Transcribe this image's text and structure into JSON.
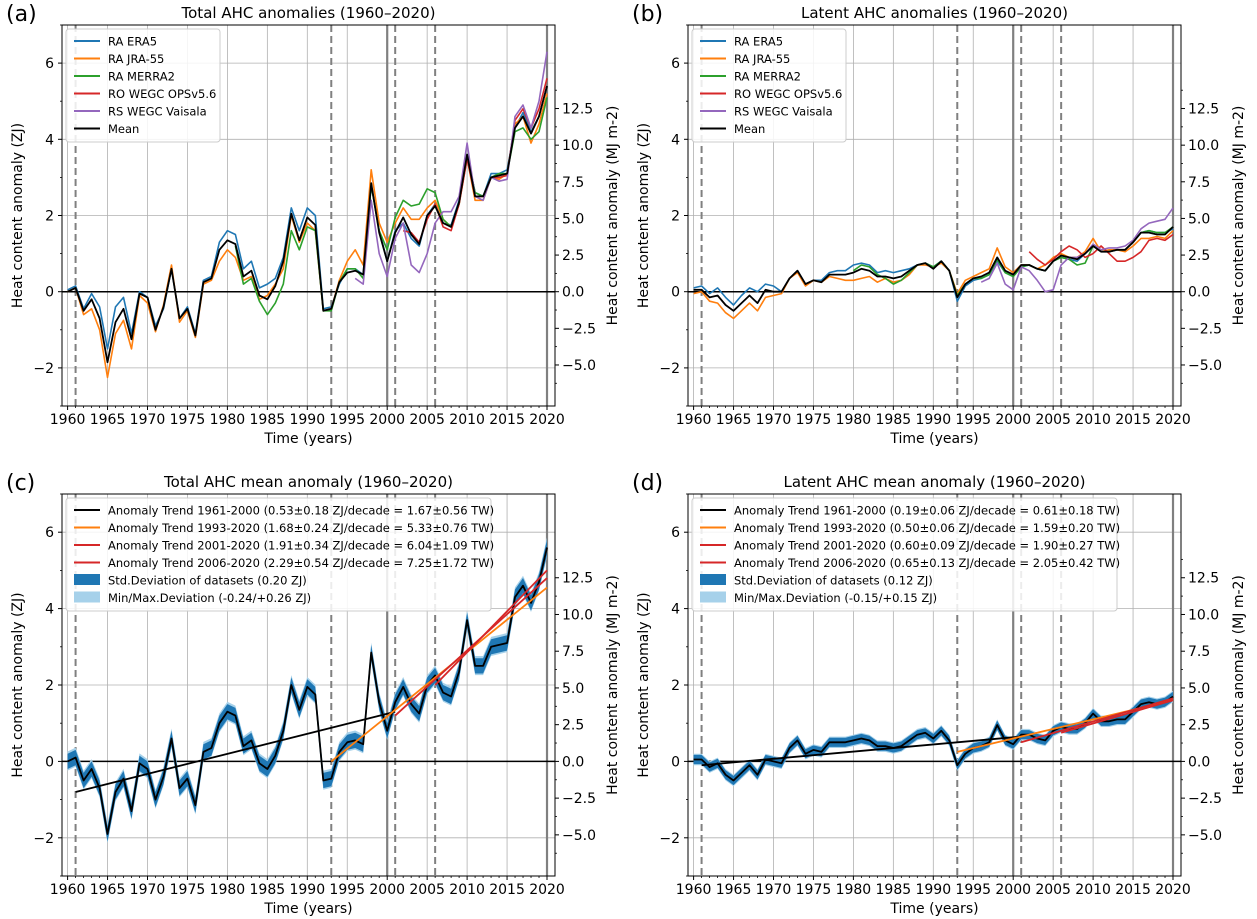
{
  "chart_data": [
    {
      "type": "line",
      "panel_label": "(a)",
      "title": "Total AHC anomalies (1960–2020)",
      "xlabel": "Time (years)",
      "ylabel": "Heat content anomaly (ZJ)",
      "ylabel_right": "Heat content anomaly (MJ m-2)",
      "xlim": [
        1959.3,
        2021
      ],
      "ylim": [
        -3,
        7
      ],
      "xticks": [
        "1960",
        "1965",
        "1970",
        "1975",
        "1980",
        "1985",
        "1990",
        "1995",
        "2000",
        "2005",
        "2010",
        "2015",
        "2020"
      ],
      "yticks": [
        "−2",
        "0",
        "2",
        "4",
        "6"
      ],
      "yticks_right": [
        "−5.0",
        "−2.5",
        "0.0",
        "2.5",
        "5.0",
        "7.5",
        "10.0",
        "12.5"
      ],
      "legend": [
        "RA ERA5",
        "RA JRA-55",
        "RA MERRA2",
        "RO WEGC OPSv5.6",
        "RS WEGC Vaisala",
        "Mean"
      ],
      "series": [
        {
          "name": "RA ERA5",
          "color": "#1f77b4",
          "x_start": 1960,
          "values": [
            0.05,
            0.15,
            -0.45,
            -0.05,
            -0.4,
            -1.5,
            -0.4,
            -0.15,
            -1.1,
            0.0,
            -0.15,
            -0.9,
            -0.45,
            0.6,
            -0.7,
            -0.4,
            -1.1,
            0.3,
            0.4,
            1.3,
            1.6,
            1.5,
            0.6,
            0.8,
            0.1,
            0.2,
            0.35,
            0.9,
            2.2,
            1.6,
            2.2,
            2.0,
            -0.45,
            -0.4,
            0.2,
            0.6,
            0.6,
            0.45,
            2.8,
            1.6,
            0.8,
            1.6,
            1.8,
            1.4,
            1.2,
            2.0,
            2.3,
            1.8,
            1.75,
            2.4,
            3.6,
            2.6,
            2.5,
            3.1,
            3.1,
            3.2,
            4.3,
            4.7,
            4.2,
            4.6,
            5.4
          ]
        },
        {
          "name": "RA JRA-55",
          "color": "#ff7f0e",
          "x_start": 1960,
          "values": [
            0.0,
            0.1,
            -0.6,
            -0.45,
            -1.0,
            -2.25,
            -1.1,
            -0.75,
            -1.5,
            -0.1,
            -0.3,
            -1.05,
            -0.35,
            0.7,
            -0.8,
            -0.5,
            -1.2,
            0.2,
            0.3,
            0.8,
            1.1,
            0.9,
            0.3,
            0.4,
            -0.2,
            -0.1,
            0.2,
            0.6,
            2.0,
            1.3,
            1.8,
            1.6,
            -0.5,
            -0.45,
            0.3,
            0.8,
            1.1,
            0.7,
            3.2,
            1.8,
            1.3,
            1.8,
            2.2,
            1.9,
            1.9,
            2.2,
            2.4,
            1.9,
            1.7,
            2.3,
            3.5,
            2.4,
            2.4,
            3.0,
            2.95,
            3.1,
            4.4,
            4.6,
            3.9,
            4.4,
            5.2
          ]
        },
        {
          "name": "RA MERRA2",
          "color": "#2ca02c",
          "x_start": 1981,
          "values": [
            1.2,
            0.2,
            0.35,
            -0.25,
            -0.6,
            -0.3,
            0.2,
            1.6,
            1.1,
            1.7,
            1.6,
            -0.5,
            -0.5,
            0.25,
            0.6,
            0.6,
            0.35,
            2.8,
            1.6,
            1.1,
            1.95,
            2.4,
            2.25,
            2.3,
            2.7,
            2.6,
            1.9,
            1.7,
            2.3,
            3.6,
            2.6,
            2.5,
            3.0,
            3.1,
            3.1,
            4.2,
            4.3,
            4.0,
            4.2,
            5.1
          ]
        },
        {
          "name": "RO WEGC OPSv5.6",
          "color": "#d62728",
          "x_start": 2002,
          "values": [
            1.6,
            1.55,
            1.3,
            1.9,
            2.3,
            1.7,
            1.6,
            2.3,
            3.5,
            2.5,
            2.5,
            3.0,
            3.0,
            3.05,
            4.5,
            4.8,
            4.3,
            4.8,
            5.6
          ]
        },
        {
          "name": "RS WEGC Vaisala",
          "color": "#9467bd",
          "x_start": 1996,
          "values": [
            0.35,
            0.2,
            2.4,
            1.0,
            0.4,
            1.4,
            1.8,
            0.7,
            0.5,
            1.0,
            1.8,
            2.1,
            2.1,
            2.5,
            3.9,
            2.5,
            2.4,
            3.0,
            2.9,
            2.95,
            4.6,
            4.9,
            4.3,
            5.0,
            6.3
          ]
        },
        {
          "name": "Mean",
          "color": "#000000",
          "x_start": 1960,
          "values": [
            0.0,
            0.1,
            -0.5,
            -0.2,
            -0.7,
            -1.85,
            -0.8,
            -0.45,
            -1.25,
            -0.05,
            -0.15,
            -1.0,
            -0.4,
            0.6,
            -0.7,
            -0.45,
            -1.15,
            0.25,
            0.35,
            1.1,
            1.35,
            1.25,
            0.4,
            0.55,
            -0.1,
            -0.2,
            0.15,
            0.8,
            2.05,
            1.35,
            1.95,
            1.75,
            -0.5,
            -0.45,
            0.25,
            0.5,
            0.55,
            0.45,
            2.85,
            1.55,
            0.8,
            1.55,
            1.95,
            1.5,
            1.25,
            2.0,
            2.25,
            1.8,
            1.7,
            2.35,
            3.6,
            2.5,
            2.5,
            3.0,
            3.05,
            3.1,
            4.3,
            4.6,
            4.15,
            4.6,
            5.4
          ]
        }
      ],
      "vlines_solid": [
        2000,
        2020
      ],
      "vlines_dashed": [
        1961,
        1993,
        2001,
        2006
      ]
    },
    {
      "type": "line",
      "panel_label": "(b)",
      "title": "Latent AHC anomalies (1960–2020)",
      "xlabel": "Time (years)",
      "ylabel": "Heat content anomaly (ZJ)",
      "ylabel_right": "Heat content anomaly (MJ m-2)",
      "xlim": [
        1959.3,
        2021
      ],
      "ylim": [
        -3,
        7
      ],
      "xticks": [
        "1960",
        "1965",
        "1970",
        "1975",
        "1980",
        "1985",
        "1990",
        "1995",
        "2000",
        "2005",
        "2010",
        "2015",
        "2020"
      ],
      "yticks": [
        "−2",
        "0",
        "2",
        "4",
        "6"
      ],
      "yticks_right": [
        "−5.0",
        "−2.5",
        "0.0",
        "2.5",
        "5.0",
        "7.5",
        "10.0",
        "12.5"
      ],
      "legend": [
        "RA ERA5",
        "RA JRA-55",
        "RA MERRA2",
        "RO WEGC OPSv5.6",
        "RS WEGC Vaisala",
        "Mean"
      ],
      "series": [
        {
          "name": "RA ERA5",
          "color": "#1f77b4",
          "x_start": 1960,
          "values": [
            0.1,
            0.15,
            -0.05,
            0.1,
            -0.15,
            -0.35,
            -0.1,
            0.1,
            0.0,
            0.2,
            0.15,
            0.0,
            0.35,
            0.55,
            0.2,
            0.3,
            0.3,
            0.5,
            0.55,
            0.55,
            0.7,
            0.75,
            0.7,
            0.5,
            0.55,
            0.5,
            0.55,
            0.6,
            0.7,
            0.75,
            0.65,
            0.8,
            0.55,
            -0.25,
            0.15,
            0.3,
            0.35,
            0.45,
            0.8,
            0.5,
            0.4,
            0.65,
            0.7,
            0.6,
            0.55,
            0.8,
            0.9,
            0.85,
            0.8,
            1.0,
            1.2,
            1.05,
            1.05,
            1.1,
            1.1,
            1.3,
            1.55,
            1.6,
            1.55,
            1.55,
            1.65
          ]
        },
        {
          "name": "RA JRA-55",
          "color": "#ff7f0e",
          "x_start": 1960,
          "values": [
            -0.05,
            0.0,
            -0.25,
            -0.3,
            -0.55,
            -0.7,
            -0.5,
            -0.3,
            -0.5,
            -0.15,
            -0.1,
            -0.05,
            0.35,
            0.5,
            0.15,
            0.3,
            0.25,
            0.4,
            0.35,
            0.3,
            0.3,
            0.35,
            0.4,
            0.25,
            0.35,
            0.25,
            0.3,
            0.45,
            0.7,
            0.7,
            0.65,
            0.75,
            0.55,
            -0.05,
            0.3,
            0.4,
            0.5,
            0.6,
            1.15,
            0.65,
            0.5,
            0.7,
            0.7,
            0.6,
            0.7,
            0.9,
            1.0,
            0.9,
            0.9,
            1.05,
            1.4,
            1.05,
            1.1,
            1.1,
            1.05,
            1.2,
            1.4,
            1.4,
            1.45,
            1.4,
            1.6
          ]
        },
        {
          "name": "RA MERRA2",
          "color": "#2ca02c",
          "x_start": 1980,
          "values": [
            0.55,
            0.7,
            0.65,
            0.45,
            0.35,
            0.2,
            0.3,
            0.5,
            0.7,
            0.75,
            0.65,
            0.8,
            0.55,
            -0.1,
            0.2,
            0.35,
            0.35,
            0.45,
            0.85,
            0.5,
            0.4,
            0.65,
            0.7,
            0.6,
            0.55,
            0.8,
            0.9,
            0.85,
            0.7,
            0.75,
            1.2,
            1.05,
            1.05,
            1.1,
            1.1,
            1.3,
            1.55,
            1.6,
            1.55,
            1.55,
            1.7
          ]
        },
        {
          "name": "RO WEGC OPSv5.6",
          "color": "#d62728",
          "x_start": 2002,
          "values": [
            1.05,
            0.85,
            0.7,
            0.85,
            1.05,
            1.2,
            1.1,
            0.9,
            1.0,
            1.2,
            1.0,
            0.8,
            0.8,
            0.9,
            1.05,
            1.35,
            1.4,
            1.35,
            1.5
          ]
        },
        {
          "name": "RS WEGC Vaisala",
          "color": "#9467bd",
          "x_start": 1996,
          "values": [
            0.25,
            0.35,
            0.75,
            0.2,
            0.05,
            0.65,
            0.55,
            0.3,
            0.0,
            0.05,
            0.7,
            0.9,
            0.9,
            1.0,
            1.25,
            1.1,
            1.15,
            1.15,
            1.2,
            1.35,
            1.65,
            1.8,
            1.85,
            1.9,
            2.2
          ]
        },
        {
          "name": "Mean",
          "color": "#000000",
          "x_start": 1960,
          "values": [
            0.05,
            0.05,
            -0.15,
            -0.1,
            -0.35,
            -0.5,
            -0.3,
            -0.1,
            -0.3,
            0.05,
            0.0,
            0.0,
            0.35,
            0.55,
            0.2,
            0.3,
            0.25,
            0.45,
            0.45,
            0.45,
            0.5,
            0.6,
            0.55,
            0.4,
            0.4,
            0.35,
            0.4,
            0.55,
            0.7,
            0.75,
            0.6,
            0.8,
            0.55,
            -0.15,
            0.2,
            0.35,
            0.4,
            0.5,
            0.9,
            0.55,
            0.45,
            0.7,
            0.7,
            0.6,
            0.55,
            0.8,
            0.95,
            0.9,
            0.85,
            1.0,
            1.2,
            1.05,
            1.05,
            1.1,
            1.1,
            1.3,
            1.55,
            1.55,
            1.5,
            1.5,
            1.7
          ]
        }
      ],
      "vlines_solid": [
        2000,
        2020
      ],
      "vlines_dashed": [
        1961,
        1993,
        2001,
        2006
      ]
    },
    {
      "type": "line",
      "panel_label": "(c)",
      "title": "Total AHC mean anomaly (1960–2020)",
      "xlabel": "Time (years)",
      "ylabel": "Heat content anomaly (ZJ)",
      "ylabel_right": "Heat content anomaly (MJ m-2)",
      "xlim": [
        1959.3,
        2021
      ],
      "ylim": [
        -3,
        7
      ],
      "xticks": [
        "1960",
        "1965",
        "1970",
        "1975",
        "1980",
        "1985",
        "1990",
        "1995",
        "2000",
        "2005",
        "2010",
        "2015",
        "2020"
      ],
      "yticks": [
        "−2",
        "0",
        "2",
        "4",
        "6"
      ],
      "yticks_right": [
        "−5.0",
        "−2.5",
        "0.0",
        "2.5",
        "5.0",
        "7.5",
        "10.0",
        "12.5"
      ],
      "legend": [
        "Anomaly Trend 1961-2000 (0.53±0.18 ZJ/decade = 1.67±0.56 TW)",
        "Anomaly Trend 1993-2020 (1.68±0.24 ZJ/decade = 5.33±0.76 TW)",
        "Anomaly Trend 2001-2020 (1.91±0.34 ZJ/decade = 6.04±1.09 TW)",
        "Anomaly Trend 2006-2020 (2.29±0.54 ZJ/decade = 7.25±1.72 TW)",
        "Std.Deviation of datasets (0.20 ZJ)",
        "Min/Max.Deviation (-0.24/+0.26 ZJ)"
      ],
      "std": 0.2,
      "min_dev": 0.24,
      "max_dev": 0.26,
      "mean_series": {
        "x_start": 1960,
        "values": [
          0.0,
          0.1,
          -0.5,
          -0.2,
          -0.7,
          -1.9,
          -0.8,
          -0.45,
          -1.3,
          -0.05,
          -0.2,
          -1.0,
          -0.4,
          0.6,
          -0.7,
          -0.45,
          -1.15,
          0.25,
          0.35,
          1.0,
          1.3,
          1.2,
          0.4,
          0.55,
          -0.05,
          -0.2,
          0.15,
          0.8,
          2.0,
          1.35,
          1.95,
          1.75,
          -0.5,
          -0.45,
          0.25,
          0.5,
          0.55,
          0.45,
          2.85,
          1.55,
          0.8,
          1.55,
          1.95,
          1.5,
          1.25,
          2.0,
          2.25,
          1.8,
          1.7,
          2.35,
          3.7,
          2.5,
          2.5,
          3.0,
          3.05,
          3.1,
          4.3,
          4.6,
          4.15,
          4.7,
          5.6
        ]
      },
      "trends": [
        {
          "name": "Anomaly Trend 1961-2000",
          "color": "#000000",
          "x0": 1961,
          "y0": -0.8,
          "x1": 2001,
          "y1": 1.3
        },
        {
          "name": "Anomaly Trend 1993-2020",
          "color": "#ff7f0e",
          "x0": 1993,
          "y0": 0.0,
          "x1": 2020,
          "y1": 4.55
        },
        {
          "name": "Anomaly Trend 2001-2020",
          "color": "#d62728",
          "x0": 2001,
          "y0": 1.2,
          "x1": 2020,
          "y1": 4.8
        },
        {
          "name": "Anomaly Trend 2006-2020",
          "color": "#d62728",
          "x0": 2006,
          "y0": 2.0,
          "x1": 2020,
          "y1": 5.0
        }
      ],
      "vlines_solid": [
        2000,
        2020
      ],
      "vlines_dashed": [
        1961,
        1993,
        2001,
        2006
      ]
    },
    {
      "type": "line",
      "panel_label": "(d)",
      "title": "Latent AHC mean anomaly (1960–2020)",
      "xlabel": "Time (years)",
      "ylabel": "Heat content anomaly (ZJ)",
      "ylabel_right": "Heat content anomaly (MJ m-2)",
      "xlim": [
        1959.3,
        2021
      ],
      "ylim": [
        -3,
        7
      ],
      "xticks": [
        "1960",
        "1965",
        "1970",
        "1975",
        "1980",
        "1985",
        "1990",
        "1995",
        "2000",
        "2005",
        "2010",
        "2015",
        "2020"
      ],
      "yticks": [
        "−2",
        "0",
        "2",
        "4",
        "6"
      ],
      "yticks_right": [
        "−5.0",
        "−2.5",
        "0.0",
        "2.5",
        "5.0",
        "7.5",
        "10.0",
        "12.5"
      ],
      "legend": [
        "Anomaly Trend 1961-2000 (0.19±0.06 ZJ/decade = 0.61±0.18 TW)",
        "Anomaly Trend 1993-2020 (0.50±0.06 ZJ/decade = 1.59±0.20 TW)",
        "Anomaly Trend 2001-2020 (0.60±0.09 ZJ/decade = 1.90±0.27 TW)",
        "Anomaly Trend 2006-2020 (0.65±0.13 ZJ/decade = 2.05±0.42 TW)",
        "Std.Deviation of datasets (0.12 ZJ)",
        "Min/Max.Deviation (-0.15/+0.15 ZJ)"
      ],
      "std": 0.12,
      "min_dev": 0.15,
      "max_dev": 0.15,
      "mean_series": {
        "x_start": 1960,
        "values": [
          0.05,
          0.05,
          -0.15,
          -0.05,
          -0.35,
          -0.5,
          -0.3,
          -0.1,
          -0.35,
          0.05,
          0.0,
          -0.05,
          0.35,
          0.55,
          0.2,
          0.3,
          0.25,
          0.5,
          0.5,
          0.5,
          0.55,
          0.6,
          0.55,
          0.4,
          0.4,
          0.35,
          0.4,
          0.55,
          0.7,
          0.75,
          0.6,
          0.8,
          0.55,
          -0.1,
          0.2,
          0.35,
          0.4,
          0.5,
          0.95,
          0.55,
          0.45,
          0.7,
          0.7,
          0.6,
          0.55,
          0.8,
          0.9,
          0.85,
          0.85,
          1.0,
          1.25,
          1.05,
          1.05,
          1.1,
          1.1,
          1.3,
          1.5,
          1.55,
          1.5,
          1.55,
          1.7
        ]
      },
      "trends": [
        {
          "name": "Anomaly Trend 1961-2000",
          "color": "#000000",
          "x0": 1961,
          "y0": -0.1,
          "x1": 2001,
          "y1": 0.65
        },
        {
          "name": "Anomaly Trend 1993-2020",
          "color": "#ff7f0e",
          "x0": 1993,
          "y0": 0.25,
          "x1": 2020,
          "y1": 1.6
        },
        {
          "name": "Anomaly Trend 2001-2020",
          "color": "#d62728",
          "x0": 2001,
          "y0": 0.5,
          "x1": 2020,
          "y1": 1.65
        },
        {
          "name": "Anomaly Trend 2006-2020",
          "color": "#d62728",
          "x0": 2006,
          "y0": 0.75,
          "x1": 2020,
          "y1": 1.6
        }
      ],
      "vlines_solid": [
        2000,
        2020
      ],
      "vlines_dashed": [
        1961,
        1993,
        2001,
        2006
      ]
    }
  ]
}
